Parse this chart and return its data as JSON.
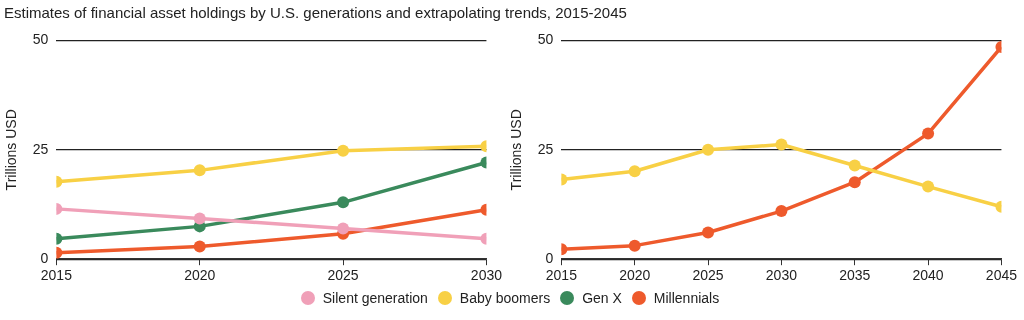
{
  "chart_data": [
    {
      "type": "line",
      "title": "Estimates of financial asset holdings by U.S. generations and extrapolating trends, 2015-2045",
      "ylabel": "Trillions USD",
      "x": [
        2015,
        2020,
        2025,
        2030
      ],
      "xlim": [
        2015,
        2030
      ],
      "xticks": [
        2015,
        2020,
        2025,
        2030
      ],
      "ylim": [
        0,
        50
      ],
      "yticks": [
        0,
        25,
        50
      ],
      "grid": "y",
      "legend": "bottom",
      "marker": "circle",
      "series": [
        {
          "name": "Silent generation",
          "color": "#f0a0b8",
          "values": [
            11.5,
            9.3,
            7.0,
            4.7
          ]
        },
        {
          "name": "Baby boomers",
          "color": "#f8d045",
          "values": [
            17.7,
            20.3,
            24.8,
            25.8
          ]
        },
        {
          "name": "Gen X",
          "color": "#3a8a5c",
          "values": [
            4.7,
            7.5,
            13.0,
            22.1
          ]
        },
        {
          "name": "Millennials",
          "color": "#ee5a2c",
          "values": [
            1.5,
            2.9,
            5.8,
            11.3
          ]
        }
      ]
    },
    {
      "type": "line",
      "ylabel": "Trillions USD",
      "x": [
        2015,
        2020,
        2025,
        2030,
        2035,
        2040,
        2045
      ],
      "xlim": [
        2015,
        2045
      ],
      "xticks": [
        2015,
        2020,
        2025,
        2030,
        2035,
        2040,
        2045
      ],
      "ylim": [
        0,
        50
      ],
      "yticks": [
        0,
        25,
        50
      ],
      "grid": "y",
      "marker": "circle",
      "series": [
        {
          "color": "#f8d045",
          "values": [
            18.2,
            20.1,
            25.0,
            26.2,
            21.4,
            16.6,
            12.0
          ]
        },
        {
          "color": "#ee5a2c",
          "values": [
            2.3,
            3.1,
            6.1,
            11.0,
            17.6,
            28.7,
            48.5
          ]
        }
      ]
    }
  ]
}
